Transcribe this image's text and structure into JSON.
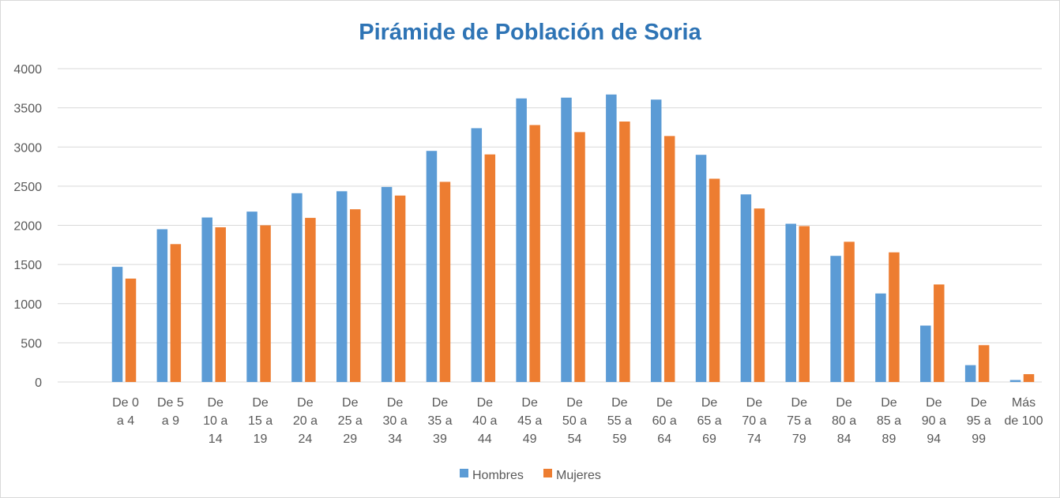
{
  "chart_data": {
    "type": "bar",
    "title": "Pirámide de Población de Soria",
    "xlabel": "",
    "ylabel": "",
    "ylim": [
      0,
      4000
    ],
    "yticks": [
      0,
      500,
      1000,
      1500,
      2000,
      2500,
      3000,
      3500,
      4000
    ],
    "grid": true,
    "legend_position": "bottom",
    "categories": [
      [
        "De 0",
        "a 4"
      ],
      [
        "De 5",
        "a 9"
      ],
      [
        "De",
        "10 a",
        "14"
      ],
      [
        "De",
        "15 a",
        "19"
      ],
      [
        "De",
        "20 a",
        "24"
      ],
      [
        "De",
        "25 a",
        "29"
      ],
      [
        "De",
        "30 a",
        "34"
      ],
      [
        "De",
        "35 a",
        "39"
      ],
      [
        "De",
        "40 a",
        "44"
      ],
      [
        "De",
        "45 a",
        "49"
      ],
      [
        "De",
        "50 a",
        "54"
      ],
      [
        "De",
        "55 a",
        "59"
      ],
      [
        "De",
        "60 a",
        "64"
      ],
      [
        "De",
        "65 a",
        "69"
      ],
      [
        "De",
        "70 a",
        "74"
      ],
      [
        "De",
        "75 a",
        "79"
      ],
      [
        "De",
        "80 a",
        "84"
      ],
      [
        "De",
        "85 a",
        "89"
      ],
      [
        "De",
        "90 a",
        "94"
      ],
      [
        "De",
        "95 a",
        "99"
      ],
      [
        "Más",
        "de 100"
      ]
    ],
    "series": [
      {
        "name": "Hombres",
        "color": "#5b9bd5",
        "values": [
          1470,
          1950,
          2100,
          2175,
          2410,
          2435,
          2490,
          2950,
          3240,
          3620,
          3630,
          3670,
          3605,
          2900,
          2395,
          2020,
          1610,
          1130,
          720,
          215,
          25
        ]
      },
      {
        "name": "Mujeres",
        "color": "#ed7d31",
        "values": [
          1320,
          1760,
          1975,
          2000,
          2095,
          2205,
          2380,
          2555,
          2905,
          3280,
          3190,
          3325,
          3140,
          2595,
          2215,
          1990,
          1790,
          1655,
          1245,
          470,
          100
        ]
      }
    ]
  }
}
